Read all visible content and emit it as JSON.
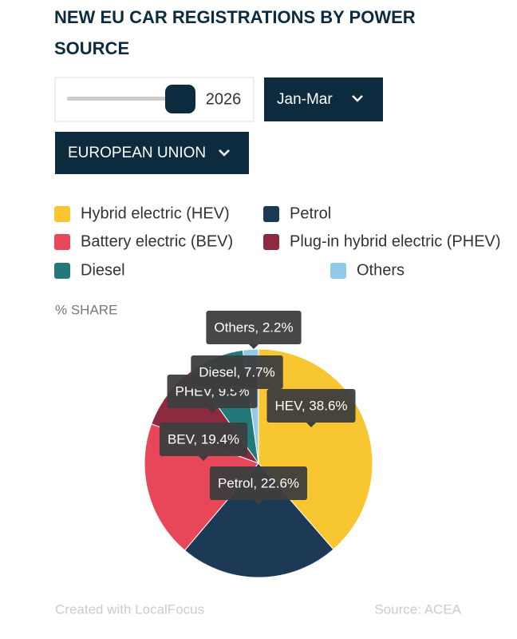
{
  "chart_data": {
    "type": "pie",
    "title": "NEW EU CAR REGISTRATIONS BY POWER SOURCE",
    "controls": {
      "year": "2026",
      "period": "Jan-Mar",
      "region": "EUROPEAN UNION"
    },
    "axis_label": "% SHARE",
    "categories": [
      "Hybrid electric (HEV)",
      "Petrol",
      "Battery electric (BEV)",
      "Plug-in hybrid electric (PHEV)",
      "Diesel",
      "Others"
    ],
    "values": [
      38.6,
      22.6,
      19.4,
      9.5,
      7.7,
      2.2
    ],
    "value_labels": [
      "HEV, 38.6%",
      "Petrol, 22.6%",
      "BEV, 19.4%",
      "PHEV, 9.5%",
      "Diesel, 7.7%",
      "Others, 2.2%"
    ],
    "colors": [
      "#f8c630",
      "#1c3a56",
      "#e8475a",
      "#8e2a40",
      "#23797a",
      "#92c8e8"
    ],
    "credit": "Created with LocalFocus",
    "source": "Source:  ACEA"
  }
}
